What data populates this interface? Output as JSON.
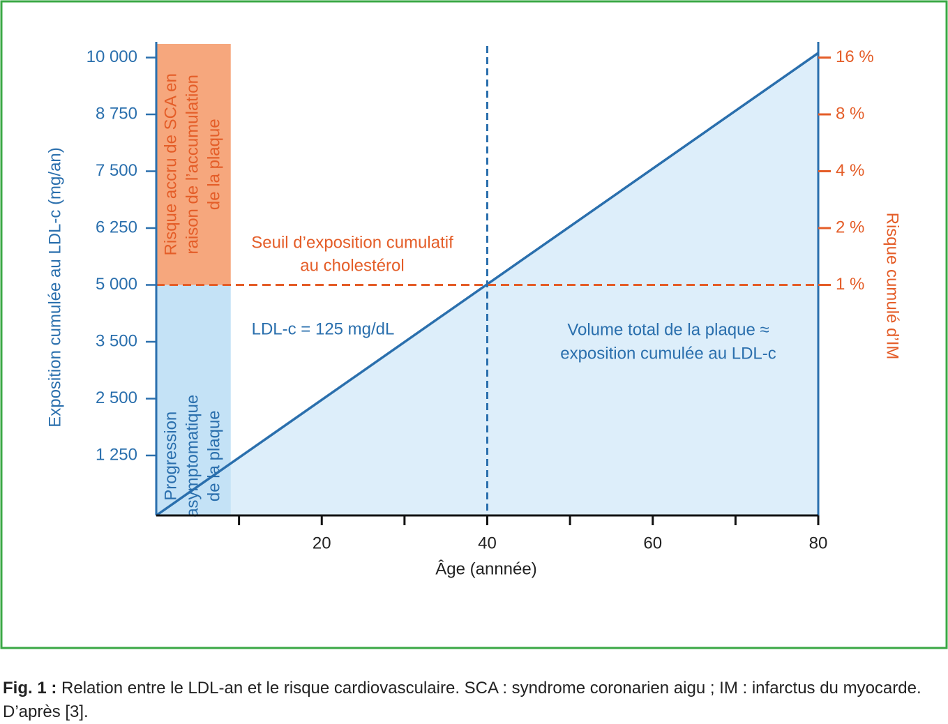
{
  "chart_data": {
    "type": "line",
    "xlabel": "Âge (annnée)",
    "ylabel": "Exposition cumulée au LDL-c (mg/an)",
    "y2label": "Risque cumulé d’IM",
    "xlim": [
      0,
      80
    ],
    "xticks": [
      20,
      40,
      60,
      80
    ],
    "xminor_ticks": [
      10,
      30,
      50,
      70
    ],
    "ylim": [
      0,
      10300
    ],
    "yticks": [
      {
        "value": 1250,
        "label": "1 250"
      },
      {
        "value": 2500,
        "label": "2 500"
      },
      {
        "value": 3500,
        "label": "3 500"
      },
      {
        "value": 5000,
        "label": "5 000"
      },
      {
        "value": 6250,
        "label": "6 250"
      },
      {
        "value": 7500,
        "label": "7 500"
      },
      {
        "value": 8750,
        "label": "8 750"
      },
      {
        "value": 10000,
        "label": "10 000"
      }
    ],
    "y2lim": [
      0.06,
      19
    ],
    "y2scale": "log",
    "y2ticks": [
      {
        "value": 1,
        "label": "1 %"
      },
      {
        "value": 2,
        "label": "2 %"
      },
      {
        "value": 4,
        "label": "4 %"
      },
      {
        "value": 8,
        "label": "8 %"
      },
      {
        "value": 16,
        "label": "16 %"
      }
    ],
    "axis_color": "#2a6fad",
    "axis2_color": "#e45d28",
    "series": [
      {
        "color": "#2a6fad",
        "fill": "#ddeefa",
        "x": [
          0,
          80
        ],
        "values": [
          0,
          10100
        ]
      }
    ],
    "regions": [
      {
        "x": [
          0,
          9
        ],
        "y": [
          5000,
          10300
        ],
        "color": "#f6a77d",
        "text_color": "#e45d28",
        "label": [
          "Risque accru de SCA en",
          "raison de l’accumulation",
          "de la plaque"
        ]
      },
      {
        "x": [
          0,
          9
        ],
        "y": [
          0,
          5000
        ],
        "color": "#c4e2f6",
        "text_color": "#2a6fad",
        "label": [
          "Progression",
          "asymptomatique",
          "de la plaque"
        ]
      }
    ],
    "hline": {
      "y": 5000,
      "color": "#e45d28",
      "label": [
        "Seuil d’exposition cumulatif",
        "au cholestérol"
      ]
    },
    "vline": {
      "x": 40,
      "color": "#2a6fad"
    },
    "annotations": [
      {
        "color": "#2a6fad",
        "text": [
          "LDL-c = 125 mg/dL"
        ]
      },
      {
        "color": "#2a6fad",
        "text": [
          "Volume total de la plaque ≈",
          "exposition cumulée au LDL-c"
        ]
      }
    ]
  },
  "caption": {
    "label": "Fig. 1 :",
    "text": "Relation entre le LDL-an et le risque cardiovasculaire. SCA : syndrome coronarien aigu ; IM : infarctus du myocarde. D’après [3]."
  }
}
